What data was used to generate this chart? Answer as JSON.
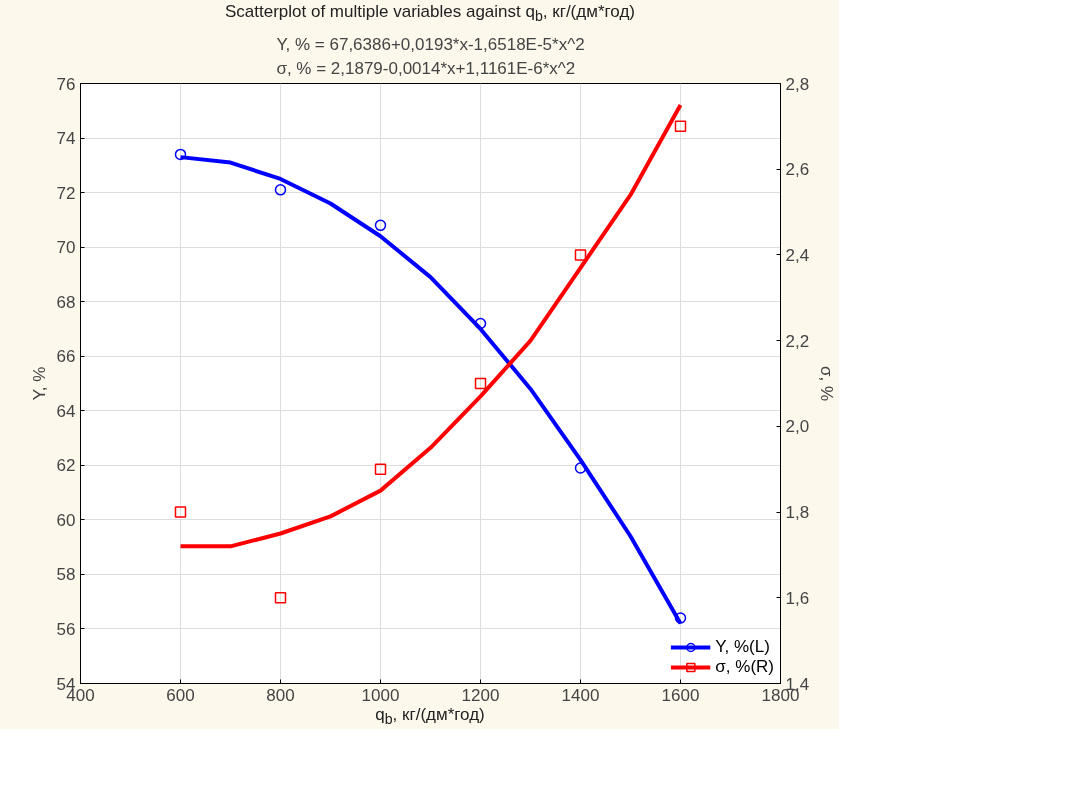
{
  "chart_data": {
    "type": "scatter",
    "title": "Scatterplot of multiple variables against q$_{b}$, кг/(дм*год)",
    "subtitle": "Y, % = 67,6386+0,0193*x-1,6518E-5*x^2\nσ, % = 2,1879-0,0014*x+1,1161E-6*x^2",
    "xlabel": "q$_{b}$, кг/(дм*год)",
    "ylabel": "Y, %",
    "y2label": "σ, %",
    "x": [
      600,
      800,
      1000,
      1200,
      1400,
      1600
    ],
    "series": [
      {
        "name": "Y, %(L)",
        "color": "#0000ff",
        "marker": "circle",
        "values": [
          73.4,
          72.1,
          70.8,
          67.2,
          61.9,
          56.4
        ]
      },
      {
        "color": "#0000ff",
        "type": "line",
        "x": [
          600,
          700,
          800,
          900,
          1000,
          1100,
          1200,
          1300,
          1400,
          1500,
          1600
        ],
        "values": [
          73.3,
          73.1,
          72.5,
          71.6,
          70.4,
          68.9,
          67.0,
          64.8,
          62.2,
          59.4,
          56.2
        ]
      },
      {
        "name": "σ, %(R)",
        "color": "#ff0000",
        "marker": "square",
        "axis": "y2",
        "values": [
          1.8,
          1.6,
          1.9,
          2.1,
          2.4,
          2.7
        ]
      },
      {
        "color": "#ff0000",
        "type": "line",
        "axis": "y2",
        "x": [
          600,
          700,
          800,
          900,
          1000,
          1100,
          1200,
          1300,
          1400,
          1500,
          1600
        ],
        "values": [
          1.72,
          1.72,
          1.75,
          1.79,
          1.85,
          1.95,
          2.07,
          2.2,
          2.37,
          2.54,
          2.75
        ]
      }
    ],
    "xlim": [
      400,
      1800
    ],
    "xticks": [
      400,
      600,
      800,
      1000,
      1200,
      1400,
      1600,
      1800
    ],
    "ylim": [
      54,
      76
    ],
    "yticks": [
      54,
      56,
      58,
      60,
      62,
      64,
      66,
      68,
      70,
      72,
      74,
      76
    ],
    "y2lim": [
      1.4,
      2.8
    ],
    "y2ticks": [
      {
        "value": 1.4,
        "label": "1,4"
      },
      {
        "value": 1.6,
        "label": "1,6"
      },
      {
        "value": 1.8,
        "label": "1,8"
      },
      {
        "value": 2.0,
        "label": "2,0"
      },
      {
        "value": 2.2,
        "label": "2,2"
      },
      {
        "value": 2.4,
        "label": "2,4"
      },
      {
        "value": 2.6,
        "label": "2,6"
      },
      {
        "value": 2.8,
        "label": "2,8"
      }
    ],
    "grid": true,
    "legend": "bottom right",
    "line_style": "solid"
  }
}
